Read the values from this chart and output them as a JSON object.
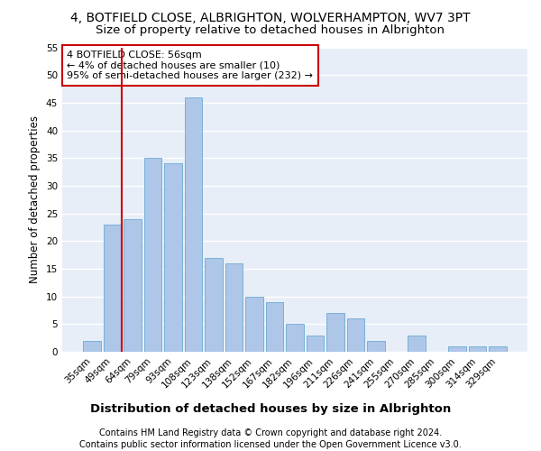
{
  "title": "4, BOTFIELD CLOSE, ALBRIGHTON, WOLVERHAMPTON, WV7 3PT",
  "subtitle": "Size of property relative to detached houses in Albrighton",
  "xlabel_bottom": "Distribution of detached houses by size in Albrighton",
  "ylabel": "Number of detached properties",
  "categories": [
    "35sqm",
    "49sqm",
    "64sqm",
    "79sqm",
    "93sqm",
    "108sqm",
    "123sqm",
    "138sqm",
    "152sqm",
    "167sqm",
    "182sqm",
    "196sqm",
    "211sqm",
    "226sqm",
    "241sqm",
    "255sqm",
    "270sqm",
    "285sqm",
    "300sqm",
    "314sqm",
    "329sqm"
  ],
  "values": [
    2,
    23,
    24,
    35,
    34,
    46,
    17,
    16,
    10,
    9,
    5,
    3,
    7,
    6,
    2,
    0,
    3,
    0,
    1,
    1,
    1
  ],
  "bar_color": "#aec6e8",
  "bar_edge_color": "#6aaad4",
  "vline_x": 1.45,
  "vline_color": "#cc0000",
  "annotation_text": "4 BOTFIELD CLOSE: 56sqm\n← 4% of detached houses are smaller (10)\n95% of semi-detached houses are larger (232) →",
  "annotation_box_color": "#ffffff",
  "annotation_box_edge_color": "#cc0000",
  "ylim": [
    0,
    55
  ],
  "yticks": [
    0,
    5,
    10,
    15,
    20,
    25,
    30,
    35,
    40,
    45,
    50,
    55
  ],
  "background_color": "#e8eef7",
  "grid_color": "#ffffff",
  "fig_background": "#ffffff",
  "footer1": "Contains HM Land Registry data © Crown copyright and database right 2024.",
  "footer2": "Contains public sector information licensed under the Open Government Licence v3.0.",
  "title_fontsize": 10,
  "subtitle_fontsize": 9.5,
  "tick_fontsize": 7.5,
  "ylabel_fontsize": 8.5,
  "annotation_fontsize": 8,
  "footer_fontsize": 7
}
